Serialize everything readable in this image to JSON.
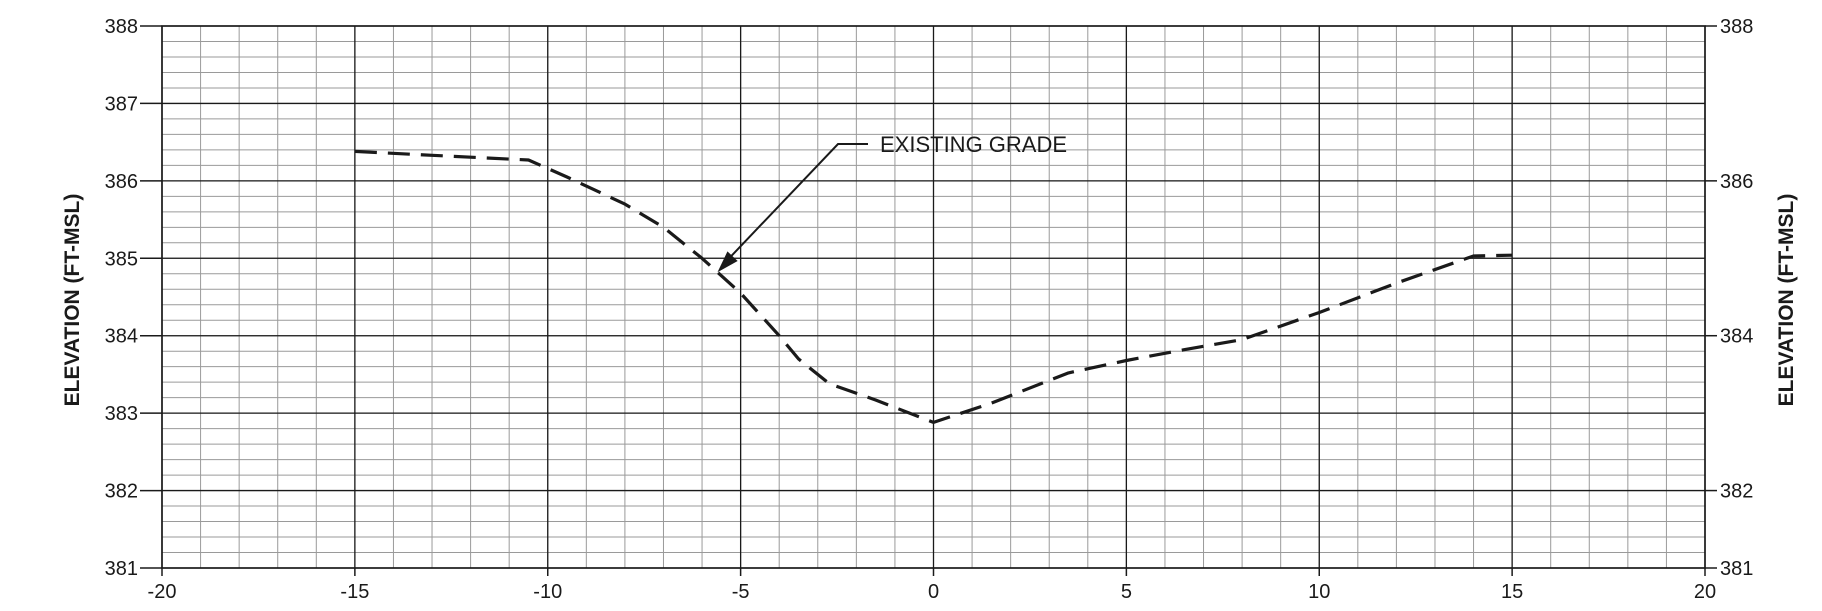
{
  "chart_data": {
    "type": "line",
    "title": "",
    "xlabel": "",
    "ylabel": "ELEVATION (FT-MSL)",
    "ylabel_right": "ELEVATION (FT-MSL)",
    "xlim": [
      -20,
      20
    ],
    "ylim": [
      381,
      388
    ],
    "x_ticks": [
      -20,
      -15,
      -10,
      -5,
      0,
      5,
      10,
      15,
      20
    ],
    "y_ticks_left": [
      381,
      382,
      383,
      384,
      385,
      386,
      387,
      388
    ],
    "y_ticks_right": [
      381,
      382,
      384,
      386,
      388
    ],
    "grid": true,
    "minor_grid": {
      "x_step": 1,
      "y_step": 0.2
    },
    "series": [
      {
        "name": "EXISTING GRADE",
        "style": "dashed",
        "color": "#1a1a1a",
        "points": [
          {
            "x": -15,
            "y": 386.38
          },
          {
            "x": -13,
            "y": 386.33
          },
          {
            "x": -10.5,
            "y": 386.27
          },
          {
            "x": -9.5,
            "y": 386.05
          },
          {
            "x": -8,
            "y": 385.7
          },
          {
            "x": -7,
            "y": 385.4
          },
          {
            "x": -6,
            "y": 385.0
          },
          {
            "x": -5,
            "y": 384.55
          },
          {
            "x": -4,
            "y": 384.0
          },
          {
            "x": -3.5,
            "y": 383.7
          },
          {
            "x": -2.7,
            "y": 383.38
          },
          {
            "x": -1.5,
            "y": 383.17
          },
          {
            "x": 0,
            "y": 382.88
          },
          {
            "x": 1.5,
            "y": 383.13
          },
          {
            "x": 3.5,
            "y": 383.52
          },
          {
            "x": 5,
            "y": 383.68
          },
          {
            "x": 6.5,
            "y": 383.82
          },
          {
            "x": 8,
            "y": 383.95
          },
          {
            "x": 10,
            "y": 384.3
          },
          {
            "x": 12,
            "y": 384.68
          },
          {
            "x": 14,
            "y": 385.03
          },
          {
            "x": 15,
            "y": 385.04
          }
        ]
      }
    ],
    "annotations": [
      {
        "text": "EXISTING GRADE",
        "points_to": {
          "x": -5.6,
          "y": 384.82
        }
      }
    ],
    "colors": {
      "grid_minor": "#9a9a9a",
      "grid_major": "#1a1a1a",
      "line": "#1a1a1a"
    }
  }
}
